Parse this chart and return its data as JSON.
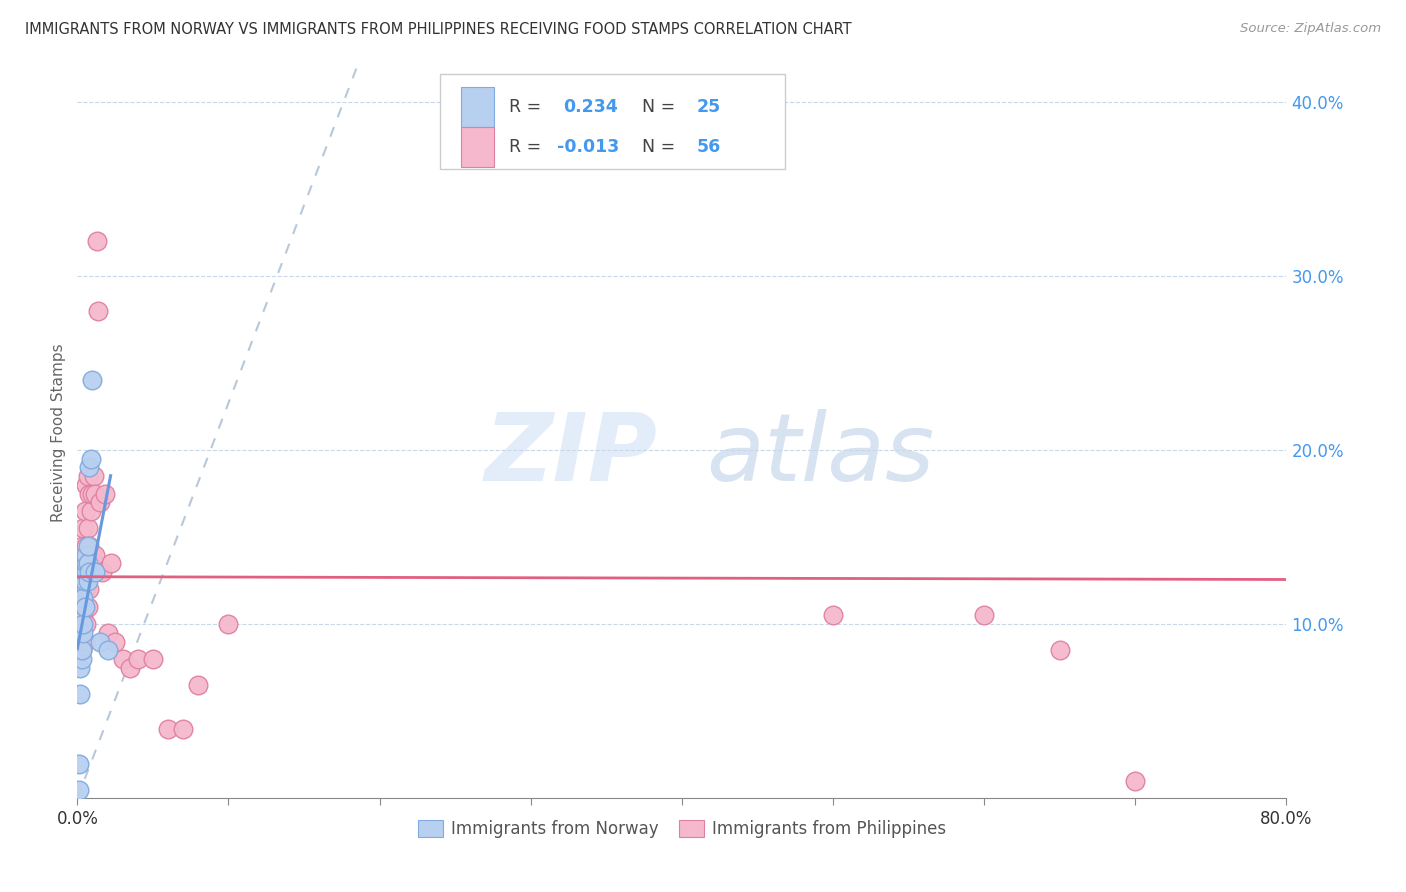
{
  "title": "IMMIGRANTS FROM NORWAY VS IMMIGRANTS FROM PHILIPPINES RECEIVING FOOD STAMPS CORRELATION CHART",
  "source": "Source: ZipAtlas.com",
  "ylabel": "Receiving Food Stamps",
  "xlim": [
    0.0,
    0.8
  ],
  "ylim": [
    0.0,
    0.42
  ],
  "norway_color": "#b8d0f0",
  "norway_edge_color": "#80aae0",
  "philippines_color": "#f5b8cc",
  "philippines_edge_color": "#e080a0",
  "norway_R": 0.234,
  "norway_N": 25,
  "philippines_R": -0.013,
  "philippines_N": 56,
  "norway_line_color": "#6699dd",
  "philippines_line_color": "#e06080",
  "trend_line_color": "#b8c8d8",
  "watermark_zip": "ZIP",
  "watermark_atlas": "atlas",
  "legend_label_norway": "Immigrants from Norway",
  "legend_label_philippines": "Immigrants from Philippines",
  "norway_x": [
    0.001,
    0.001,
    0.002,
    0.002,
    0.003,
    0.003,
    0.004,
    0.004,
    0.004,
    0.005,
    0.005,
    0.005,
    0.006,
    0.006,
    0.006,
    0.007,
    0.007,
    0.007,
    0.008,
    0.008,
    0.009,
    0.01,
    0.012,
    0.015,
    0.02
  ],
  "norway_y": [
    0.005,
    0.02,
    0.06,
    0.075,
    0.08,
    0.085,
    0.095,
    0.1,
    0.115,
    0.11,
    0.125,
    0.13,
    0.13,
    0.135,
    0.14,
    0.125,
    0.135,
    0.145,
    0.13,
    0.19,
    0.195,
    0.24,
    0.13,
    0.09,
    0.085
  ],
  "philippines_x": [
    0.001,
    0.001,
    0.002,
    0.002,
    0.002,
    0.003,
    0.003,
    0.003,
    0.003,
    0.004,
    0.004,
    0.004,
    0.004,
    0.005,
    0.005,
    0.005,
    0.005,
    0.006,
    0.006,
    0.006,
    0.006,
    0.007,
    0.007,
    0.007,
    0.007,
    0.008,
    0.008,
    0.008,
    0.009,
    0.009,
    0.01,
    0.01,
    0.011,
    0.011,
    0.012,
    0.012,
    0.013,
    0.014,
    0.015,
    0.016,
    0.018,
    0.02,
    0.022,
    0.025,
    0.03,
    0.035,
    0.04,
    0.05,
    0.06,
    0.07,
    0.08,
    0.1,
    0.5,
    0.6,
    0.65,
    0.7
  ],
  "philippines_y": [
    0.12,
    0.13,
    0.1,
    0.115,
    0.13,
    0.085,
    0.1,
    0.115,
    0.145,
    0.105,
    0.12,
    0.135,
    0.155,
    0.09,
    0.11,
    0.13,
    0.165,
    0.1,
    0.12,
    0.145,
    0.18,
    0.11,
    0.13,
    0.155,
    0.185,
    0.12,
    0.145,
    0.175,
    0.13,
    0.165,
    0.14,
    0.175,
    0.135,
    0.185,
    0.14,
    0.175,
    0.32,
    0.28,
    0.17,
    0.13,
    0.175,
    0.095,
    0.135,
    0.09,
    0.08,
    0.075,
    0.08,
    0.08,
    0.04,
    0.04,
    0.065,
    0.1,
    0.105,
    0.105,
    0.085,
    0.01
  ]
}
